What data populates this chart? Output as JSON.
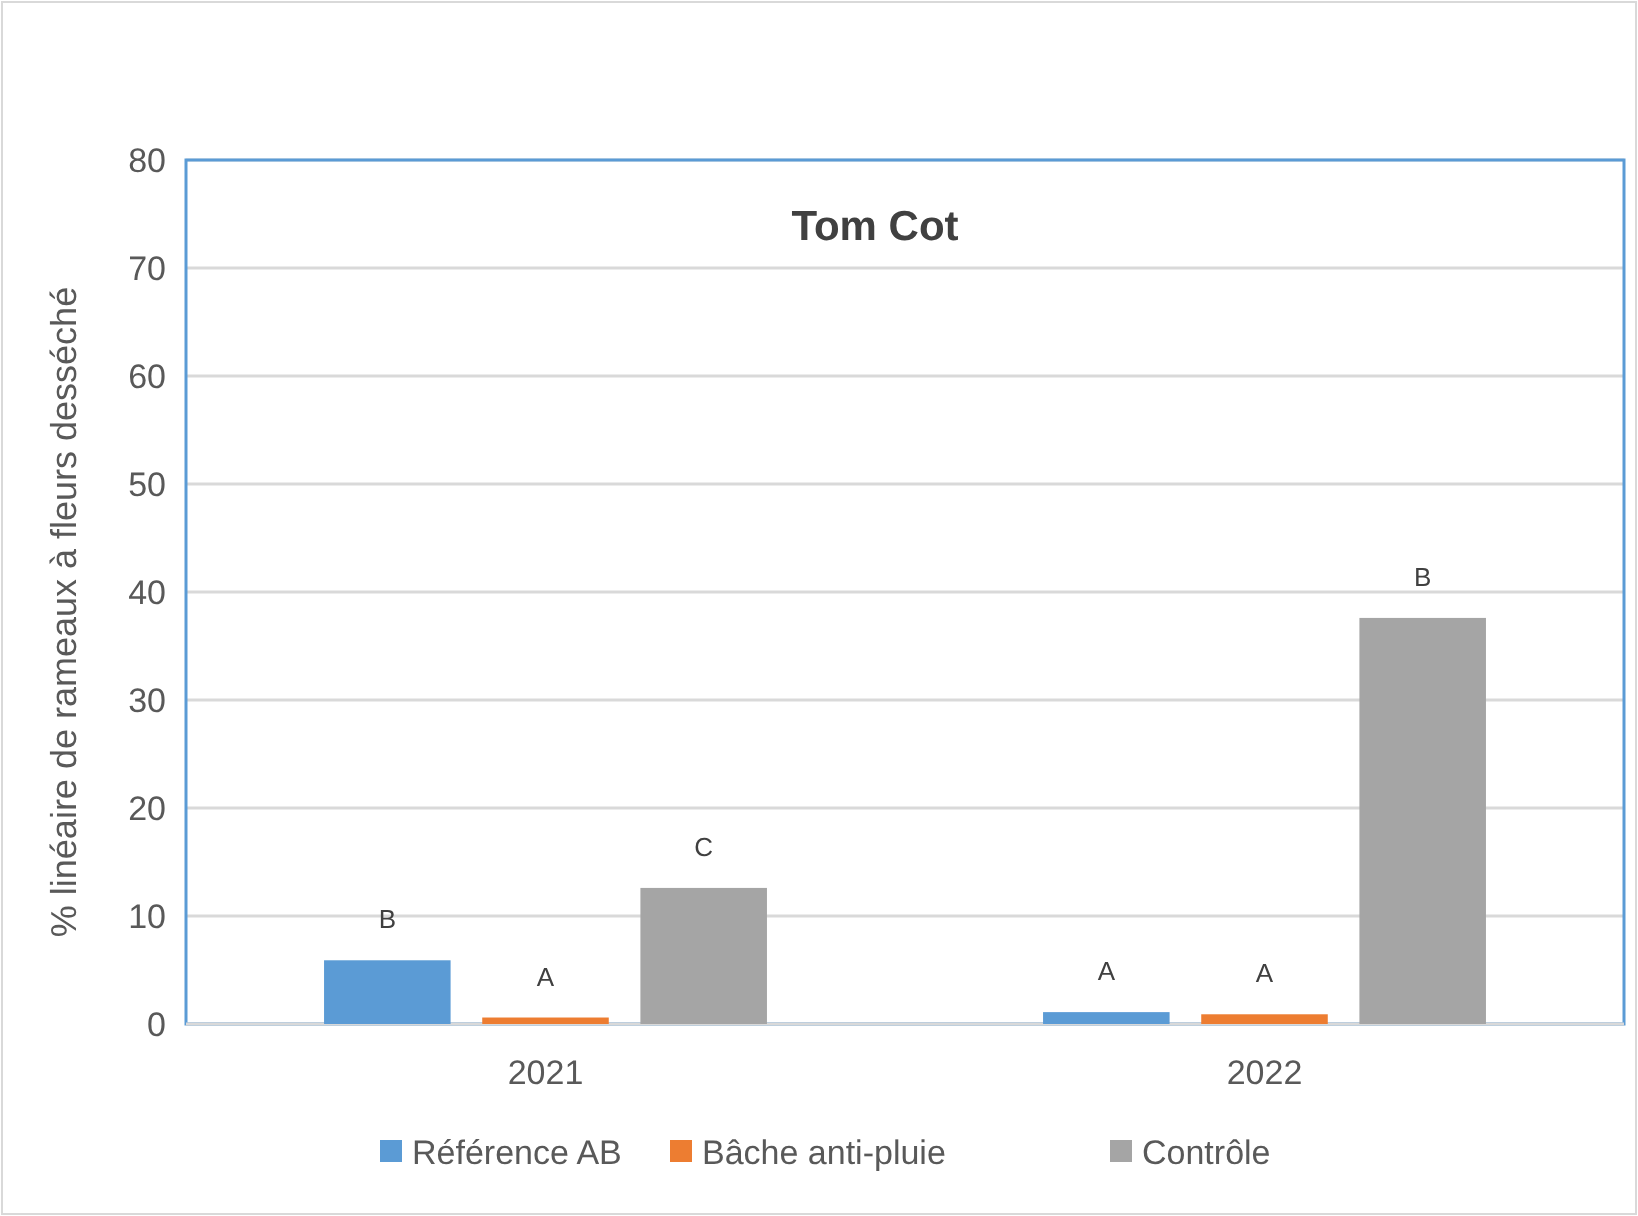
{
  "chart_data": {
    "type": "bar",
    "title": "Tom Cot",
    "ylabel": "% linéaire de rameaux à fleurs desséché",
    "categories": [
      "2021",
      "2022"
    ],
    "series": [
      {
        "name": "Référence AB",
        "color": "#5b9bd5",
        "values": [
          5.9,
          1.1
        ],
        "value_labels": [
          "B",
          "A"
        ]
      },
      {
        "name": "Bâche anti-pluie",
        "color": "#ed7d31",
        "values": [
          0.6,
          0.9
        ],
        "value_labels": [
          "A",
          "A"
        ]
      },
      {
        "name": "Contrôle",
        "color": "#a5a5a5",
        "values": [
          12.6,
          37.6
        ],
        "value_labels": [
          "C",
          "B"
        ]
      }
    ],
    "ylim": [
      0,
      80
    ],
    "yticks": [
      0,
      10,
      20,
      30,
      40,
      50,
      60,
      70,
      80
    ],
    "grid": "y",
    "legend": "bottom"
  }
}
